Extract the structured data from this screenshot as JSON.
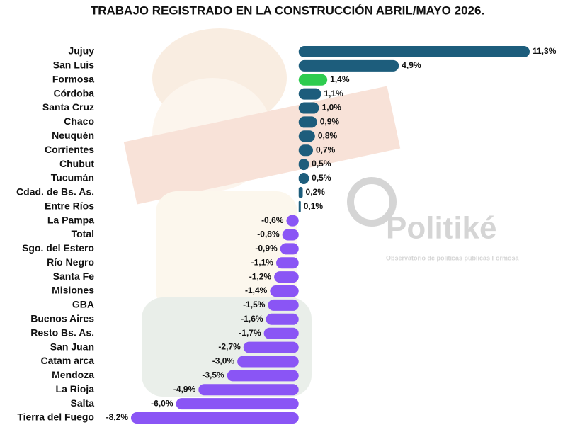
{
  "chart_data": {
    "type": "bar",
    "orientation": "horizontal",
    "title": "TRABAJO REGISTRADO EN LA CONSTRUCCIÓN ABRIL/MAYO 2026.",
    "watermark": "Politiké",
    "watermark_subtitle": "Observatorio de políticas públicas Formosa",
    "categories": [
      "Jujuy",
      "San Luis",
      "Formosa",
      "Córdoba",
      "Santa Cruz",
      "Chaco",
      "Neuquén",
      "Corrientes",
      "Chubut",
      "Tucumán",
      "Cdad. de Bs. As.",
      "Entre Ríos",
      "La Pampa",
      "Total",
      "Sgo. del Estero",
      "Río Negro",
      "Santa Fe",
      "Misiones",
      "GBA",
      "Buenos Aires",
      "Resto Bs. As.",
      "San Juan",
      "Catam arca",
      "Mendoza",
      "La Rioja",
      "Salta",
      "Tierra del Fuego"
    ],
    "values": [
      11.3,
      4.9,
      1.4,
      1.1,
      1.0,
      0.9,
      0.8,
      0.7,
      0.5,
      0.5,
      0.2,
      0.1,
      -0.6,
      -0.8,
      -0.9,
      -1.1,
      -1.2,
      -1.4,
      -1.5,
      -1.6,
      -1.7,
      -2.7,
      -3.0,
      -3.5,
      -4.9,
      -6.0,
      -8.2
    ],
    "value_labels": [
      "11,3%",
      "4,9%",
      "1,4%",
      "1,1%",
      "1,0%",
      "0,9%",
      "0,8%",
      "0,7%",
      "0,5%",
      "0,5%",
      "0,2%",
      "0,1%",
      "-0,6%",
      "-0,8%",
      "-0,9%",
      "-1,1%",
      "-1,2%",
      "-1,4%",
      "-1,5%",
      "-1,6%",
      "-1,7%",
      "-2,7%",
      "-3,0%",
      "-3,5%",
      "-4,9%",
      "-6,0%",
      "-8,2%"
    ],
    "colors": [
      "#1d5d7c",
      "#1d5d7c",
      "#2ecc4f",
      "#1d5d7c",
      "#1d5d7c",
      "#1d5d7c",
      "#1d5d7c",
      "#1d5d7c",
      "#1d5d7c",
      "#1d5d7c",
      "#1d5d7c",
      "#1d5d7c",
      "#8a55f5",
      "#8a55f5",
      "#8a55f5",
      "#8a55f5",
      "#8a55f5",
      "#8a55f5",
      "#8a55f5",
      "#8a55f5",
      "#8a55f5",
      "#8a55f5",
      "#8a55f5",
      "#8a55f5",
      "#8a55f5",
      "#8a55f5",
      "#8a55f5"
    ]
  }
}
